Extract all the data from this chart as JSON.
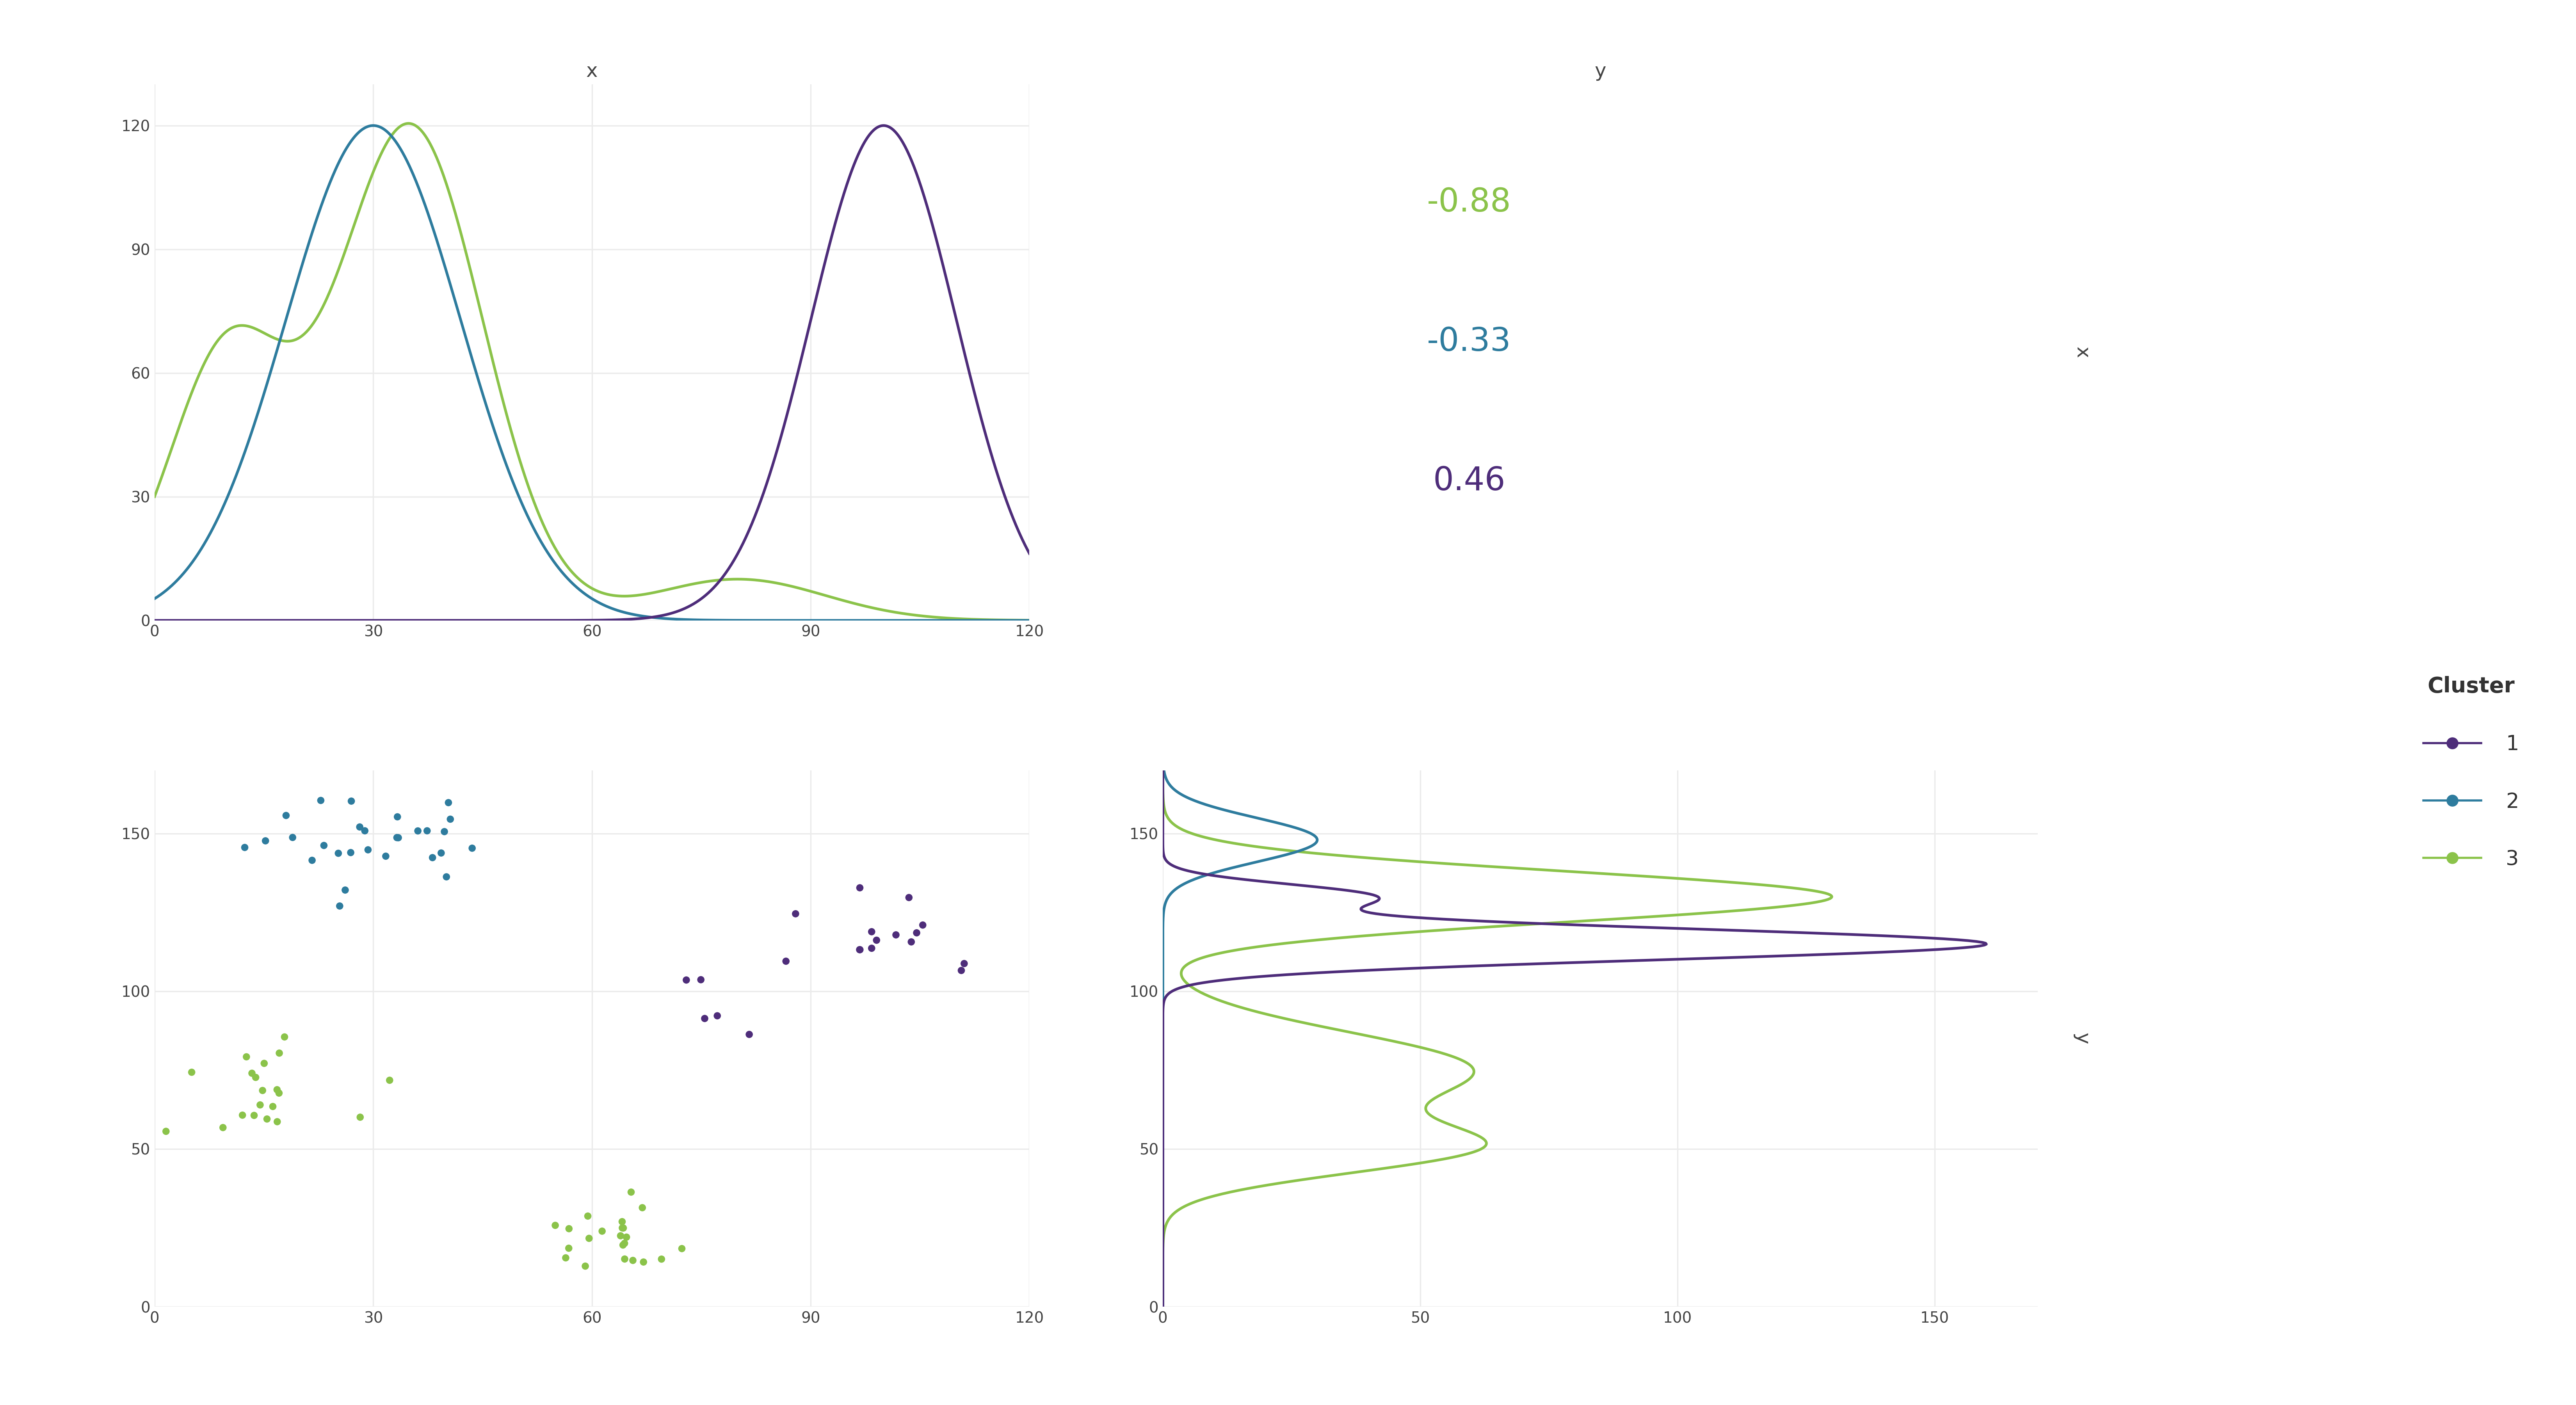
{
  "background_color": "#ffffff",
  "cluster_colors": {
    "1": "#4e2d7a",
    "2": "#2e7c9e",
    "3": "#8bc34a"
  },
  "top_left_title": "x",
  "top_right_title": "y",
  "corr_values": {
    "3": "-0.88",
    "2": "-0.33",
    "1": "0.46"
  },
  "legend_title": "Cluster",
  "grid_color": "#ebebeb",
  "tick_color": "#444444",
  "tick_fontsize": 28,
  "title_fontsize": 36,
  "corr_fontsize": 60,
  "label_fontsize": 36
}
